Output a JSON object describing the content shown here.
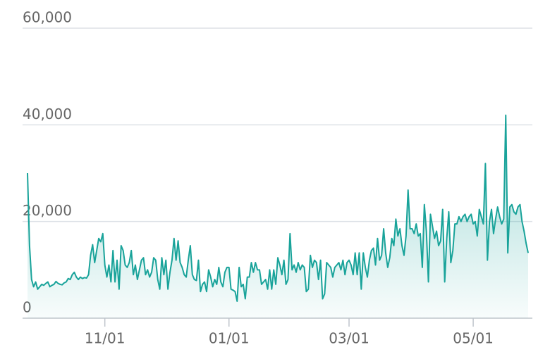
{
  "chart_data": {
    "type": "line",
    "color": "#19a39a",
    "area": true,
    "grid": true,
    "ylim": [
      0,
      60000
    ],
    "yticks": [
      0,
      {
        "value": 20000,
        "label": "20,000"
      },
      {
        "value": 40000,
        "label": "40,000"
      },
      {
        "value": 60000,
        "label": "60,000"
      }
    ],
    "xticks": [
      "11/01",
      "01/01",
      "03/01",
      "05/01"
    ],
    "x": [
      "09/24",
      "09/25",
      "09/26",
      "09/27",
      "09/28",
      "09/29",
      "09/30",
      "10/01",
      "10/02",
      "10/03",
      "10/04",
      "10/05",
      "10/06",
      "10/07",
      "10/08",
      "10/09",
      "10/10",
      "10/11",
      "10/12",
      "10/13",
      "10/14",
      "10/15",
      "10/16",
      "10/17",
      "10/18",
      "10/19",
      "10/20",
      "10/21",
      "10/22",
      "10/23",
      "10/24",
      "10/25",
      "10/26",
      "10/27",
      "10/28",
      "10/29",
      "10/30",
      "10/31",
      "11/01",
      "11/02",
      "11/03",
      "11/04",
      "11/05",
      "11/06",
      "11/07",
      "11/08",
      "11/09",
      "11/10",
      "11/11",
      "11/12",
      "11/13",
      "11/14",
      "11/15",
      "11/16",
      "11/17",
      "11/18",
      "11/19",
      "11/20",
      "11/21",
      "11/22",
      "11/23",
      "11/24",
      "11/25",
      "11/26",
      "11/27",
      "11/28",
      "11/29",
      "11/30",
      "12/01",
      "12/02",
      "12/03",
      "12/04",
      "12/05",
      "12/06",
      "12/07",
      "12/08",
      "12/09",
      "12/10",
      "12/11",
      "12/12",
      "12/13",
      "12/14",
      "12/15",
      "12/16",
      "12/17",
      "12/18",
      "12/19",
      "12/20",
      "12/21",
      "12/22",
      "12/23",
      "12/24",
      "12/25",
      "12/26",
      "12/27",
      "12/28",
      "12/29",
      "12/30",
      "12/31",
      "01/01",
      "01/02",
      "01/03",
      "01/04",
      "01/05",
      "01/06",
      "01/07",
      "01/08",
      "01/09",
      "01/10",
      "01/11",
      "01/12",
      "01/13",
      "01/14",
      "01/15",
      "01/16",
      "01/17",
      "01/18",
      "01/19",
      "01/20",
      "01/21",
      "01/22",
      "01/23",
      "01/24",
      "01/25",
      "01/26",
      "01/27",
      "01/28",
      "01/29",
      "01/30",
      "01/31",
      "02/01",
      "02/02",
      "02/03",
      "02/04",
      "02/05",
      "02/06",
      "02/07",
      "02/08",
      "02/09",
      "02/10",
      "02/11",
      "02/12",
      "02/13",
      "02/14",
      "02/15",
      "02/16",
      "02/17",
      "02/18",
      "02/19",
      "02/20",
      "02/21",
      "02/22",
      "02/23",
      "02/24",
      "02/25",
      "02/26",
      "02/27",
      "02/28",
      "03/01",
      "03/02",
      "03/03",
      "03/04",
      "03/05",
      "03/06",
      "03/07",
      "03/08",
      "03/09",
      "03/10",
      "03/11",
      "03/12",
      "03/13",
      "03/14",
      "03/15",
      "03/16",
      "03/17",
      "03/18",
      "03/19",
      "03/20",
      "03/21",
      "03/22",
      "03/23",
      "03/24",
      "03/25",
      "03/26",
      "03/27",
      "03/28",
      "03/29",
      "03/30",
      "03/31",
      "04/01",
      "04/02",
      "04/03",
      "04/04",
      "04/05",
      "04/06",
      "04/07",
      "04/08",
      "04/09",
      "04/10",
      "04/11",
      "04/12",
      "04/13",
      "04/14",
      "04/15",
      "04/16",
      "04/17",
      "04/18",
      "04/19",
      "04/20",
      "04/21",
      "04/22",
      "04/23",
      "04/24",
      "04/25",
      "04/26",
      "04/27",
      "04/28",
      "04/29",
      "04/30",
      "05/01",
      "05/02",
      "05/03",
      "05/04",
      "05/05",
      "05/06",
      "05/07",
      "05/08",
      "05/09",
      "05/10",
      "05/11",
      "05/12",
      "05/13",
      "05/14",
      "05/15",
      "05/16",
      "05/17",
      "05/18",
      "05/19",
      "05/20",
      "05/21",
      "05/22",
      "05/23",
      "05/24",
      "05/25",
      "05/26",
      "05/27",
      "05/28"
    ],
    "values": [
      30000,
      15000,
      8000,
      6500,
      7500,
      6000,
      6500,
      7000,
      6800,
      7200,
      7500,
      6500,
      6800,
      7000,
      7600,
      7200,
      7000,
      6900,
      7300,
      7500,
      8200,
      8000,
      9000,
      9500,
      8500,
      8000,
      8500,
      8200,
      8400,
      8300,
      9000,
      13000,
      15200,
      11500,
      14000,
      16500,
      15800,
      17500,
      11000,
      8500,
      11000,
      7500,
      14000,
      7500,
      12000,
      6000,
      15000,
      14000,
      11000,
      10500,
      11500,
      14000,
      9000,
      11000,
      8000,
      10000,
      12000,
      12500,
      9000,
      10000,
      8500,
      9500,
      12500,
      12000,
      8000,
      6000,
      12500,
      9000,
      12000,
      6000,
      9500,
      12000,
      16500,
      12000,
      16000,
      11500,
      10500,
      9000,
      8500,
      12000,
      15000,
      9000,
      8000,
      7800,
      12000,
      5500,
      7000,
      7500,
      5500,
      10000,
      8500,
      6500,
      8000,
      7000,
      10500,
      7500,
      6500,
      9500,
      10500,
      10500,
      6000,
      5800,
      5500,
      3500,
      10500,
      6500,
      7000,
      4000,
      8500,
      8500,
      11500,
      9500,
      11500,
      10000,
      10000,
      7000,
      7500,
      8000,
      6000,
      10000,
      6000,
      10000,
      7000,
      12500,
      11000,
      9000,
      12000,
      7000,
      8000,
      17500,
      10000,
      11000,
      9500,
      11500,
      10000,
      11000,
      10500,
      5500,
      6000,
      13000,
      10500,
      12000,
      11500,
      8000,
      12000,
      4000,
      5000,
      11500,
      11000,
      10500,
      8500,
      10500,
      11000,
      11500,
      10000,
      12000,
      9000,
      11500,
      12000,
      11000,
      9000,
      13500,
      9000,
      13500,
      6000,
      13500,
      10500,
      8500,
      12000,
      14000,
      14500,
      11000,
      16500,
      12000,
      13000,
      18500,
      13500,
      10500,
      12500,
      16500,
      15000,
      20500,
      17000,
      18500,
      15000,
      13000,
      17000,
      26500,
      18500,
      18500,
      17500,
      19500,
      17000,
      17500,
      10500,
      23500,
      18000,
      7500,
      21500,
      19000,
      16500,
      18000,
      15000,
      16000,
      22500,
      7500,
      16500,
      22000,
      11500,
      14000,
      19500,
      19500,
      21000,
      20000,
      21000,
      21500,
      20000,
      21000,
      21500,
      19500,
      20000,
      17000,
      22500,
      21000,
      19500,
      32000,
      12000,
      20000,
      22500,
      17500,
      20500,
      23000,
      21000,
      19500,
      20500,
      42000,
      13500,
      23000,
      23500,
      22000,
      21500,
      23000,
      23500,
      20000,
      18000,
      15500,
      13500
    ]
  }
}
